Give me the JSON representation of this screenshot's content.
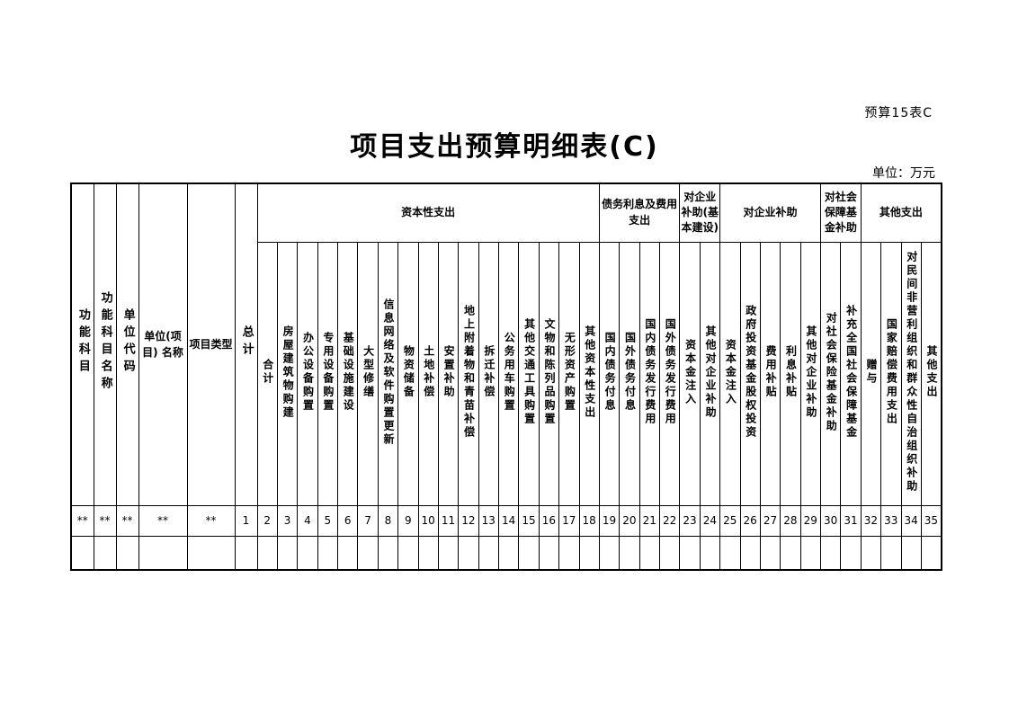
{
  "page": {
    "doc_label": "预算15表C",
    "title": "项目支出预算明细表(C)",
    "unit_label": "单位：万元"
  },
  "table": {
    "left_columns": [
      {
        "label": "功能科目",
        "vertical": true
      },
      {
        "label": "功能科目名称",
        "vertical": true
      },
      {
        "label": "单位代码",
        "vertical": true
      },
      {
        "label": "单位(项目) 名称",
        "vertical": false
      },
      {
        "label": "项目类型",
        "vertical": false
      },
      {
        "label": "总计",
        "vertical": true
      }
    ],
    "groups": [
      {
        "label": "资本性支出",
        "columns": [
          "合计",
          "房屋建筑物购建",
          "办公设备购置",
          "专用设备购置",
          "基础设施建设",
          "大型修缮",
          "信息网络及软件购置更新",
          "物资储备",
          "土地补偿",
          "安置补助",
          "地上附着物和青苗补偿",
          "拆迁补偿",
          "公务用车购置",
          "其他交通工具购置",
          "文物和陈列品购置",
          "无形资产购置",
          "其他资本性支出"
        ]
      },
      {
        "label": "债务利息及费用支出",
        "columns": [
          "国内债务付息",
          "国外债务付息",
          "国内债务发行费用",
          "国外债务发行费用"
        ]
      },
      {
        "label": "对企业补助(基本建设)",
        "columns": [
          "资本金注入",
          "其他对企业补助"
        ]
      },
      {
        "label": "对企业补助",
        "columns": [
          "资本金注入",
          "政府投资基金股权投资",
          "费用补贴",
          "利息补贴",
          "其他对企业补助"
        ]
      },
      {
        "label": "对社会保障基金补助",
        "columns": [
          "对社会保险基金补助",
          "补充全国社会保障基金"
        ]
      },
      {
        "label": "其他支出",
        "columns": [
          "赠与",
          "国家赔偿费用支出",
          "对民间非营利组织和群众性自治组织补助",
          "其他支出"
        ]
      }
    ],
    "number_row": [
      "**",
      "**",
      "**",
      "**",
      "**",
      "1",
      "2",
      "3",
      "4",
      "5",
      "6",
      "7",
      "8",
      "9",
      "10",
      "11",
      "12",
      "13",
      "14",
      "15",
      "16",
      "17",
      "18",
      "19",
      "20",
      "21",
      "22",
      "23",
      "24",
      "25",
      "26",
      "27",
      "28",
      "29",
      "30",
      "31",
      "32",
      "33",
      "34",
      "35"
    ],
    "empty_rows": 1
  }
}
